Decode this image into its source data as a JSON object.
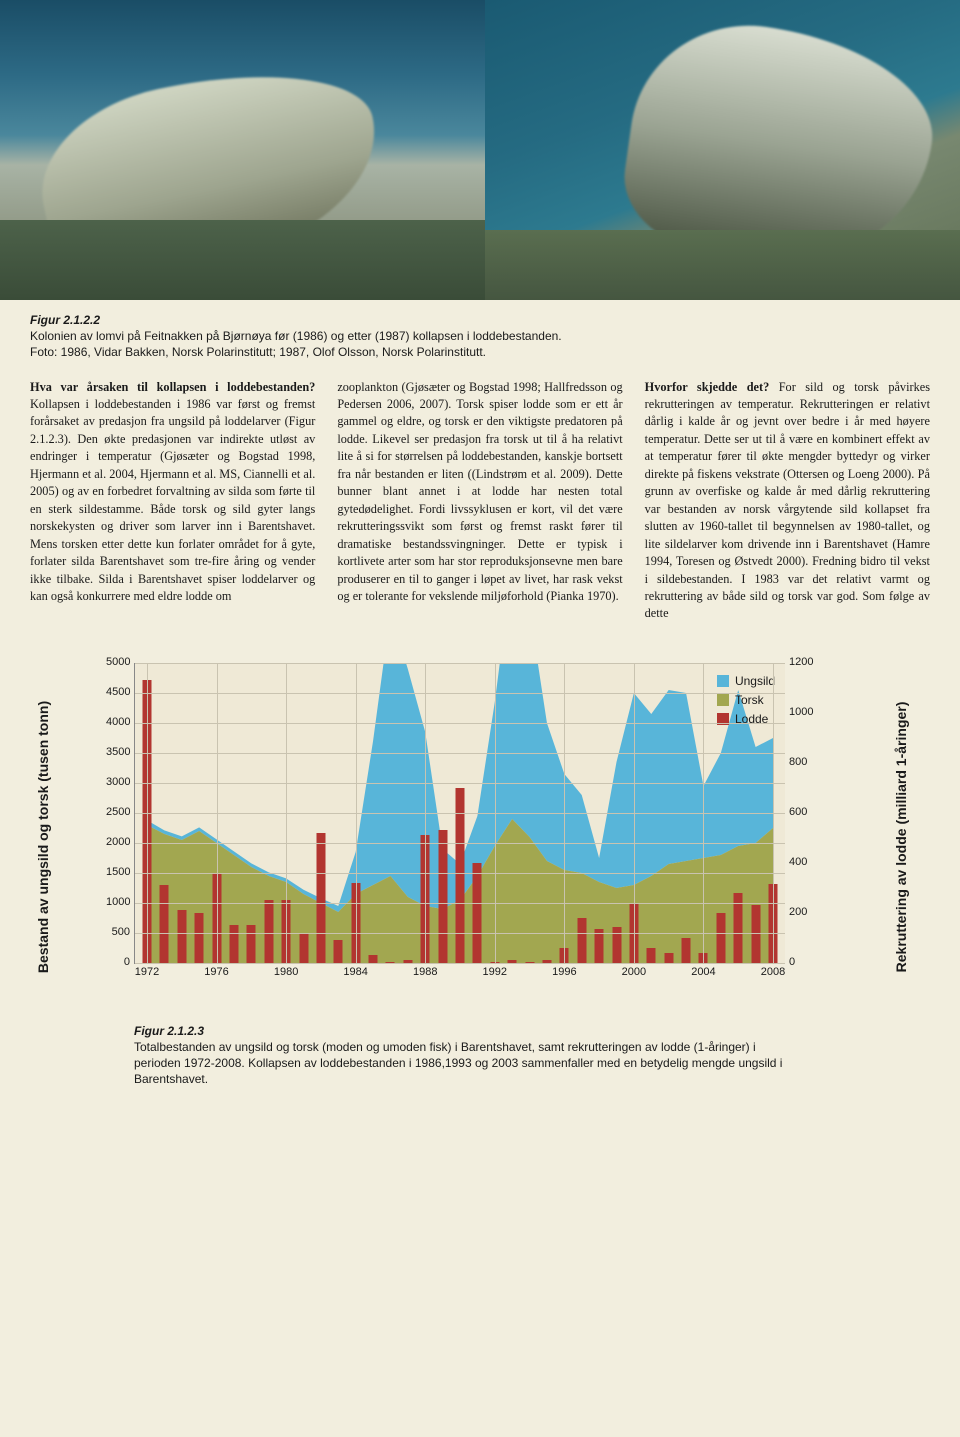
{
  "photos": {
    "left_alt": "Lomvi colony Feitnakken Bjørnøya 1986",
    "right_alt": "Lomvi colony Feitnakken Bjørnøya 1987"
  },
  "fig_caption": {
    "title": "Figur 2.1.2.2",
    "line1": "Kolonien av lomvi på Feitnakken på Bjørnøya før (1986) og etter (1987) kollapsen i loddebestanden.",
    "line2": "Foto: 1986, Vidar Bakken, Norsk Polarinstitutt; 1987, Olof Olsson, Norsk Polarinstitutt."
  },
  "columns": {
    "col1": {
      "heading": "Hva var årsaken til kollapsen i loddebestanden?",
      "body": "Kollapsen i loddebestanden i 1986 var først og fremst forårsaket av predasjon fra ungsild på loddelarver (Figur 2.1.2.3). Den økte predasjonen var indirekte utløst av endringer i temperatur (Gjøsæter og Bogstad 1998, Hjermann et al. 2004, Hjer­mann et al. MS, Ciannelli et al. 2005) og av en forbedret forvaltning av silda som førte til en sterk sildestamme. Både torsk og sild gyter langs norskekysten og dri­ver som larver inn i Barentshavet. Mens torsken etter dette kun forlater området for å gyte, forlater silda Barentshavet som tre-fire åring og vender ikke tilbake. Silda i Barentshavet spiser loddelarver og kan også konkurrere med eldre lodde om"
    },
    "col2": {
      "body": "zooplankton (Gjøsæter og Bogstad 1998; Hallfredsson og Pedersen 2006, 2007). Torsk spiser lodde som er ett år gammel og eldre, og torsk er den viktigste predatoren på lodde. Likevel ser predasjon fra torsk ut til å ha relativt lite å si for størrelsen på loddebestanden, kanskje bortsett fra når bestanden er liten ((Lindstrøm et al. 2009). Dette bunner blant annet i at lodde har nesten total gytedødelighet. Fordi livs­syklusen er kort, vil det være rekrutterings­svikt som først og fremst raskt fører til dramatiske bestandssvingninger. Dette er typisk i kortlivete arter som har stor repro­duksjonsevne men bare produserer en til to ganger i løpet av livet, har rask vekst og er tolerante for vekslende miljøforhold (Pianka 1970)."
    },
    "col3": {
      "heading": "Hvorfor skjedde det?",
      "body": "For sild og torsk påvirkes rekrutteringen av temperatur. Rekrutteringen er relativt dårlig i kalde år og jevnt over bedre i år med høyere temperatur. Dette ser ut til å være en kombinert effekt av at temperatur fører til økte mengder byttedyr og virker direkte på fiskens vekstrate (Ottersen og Loeng 2000). På grunn av overfiske og kalde år med dårlig rekruttering var bestanden av norsk vårgytende sild kol­lapset fra slutten av 1960-tallet til begyn­nelsen av 1980-tallet, og lite sildelarver kom drivende inn i Barentshavet (Hamre 1994, Toresen og Østvedt 2000). Fredning bidro til vekst i sildebestanden. I 1983 var det relativt varmt og rekruttering av både sild og torsk var god. Som følge av dette"
    }
  },
  "chart": {
    "type": "area_and_bar_dual_axis",
    "background_color": "#efe9d6",
    "grid_color": "#c9c3b0",
    "font_family": "Arial",
    "label_fontsize": 14,
    "tick_fontsize": 11,
    "y_left": {
      "label": "Bestand av ungsild og torsk (tusen tonn)",
      "min": 0,
      "max": 5000,
      "ticks": [
        0,
        500,
        1000,
        1500,
        2000,
        2500,
        3000,
        3500,
        4000,
        4500,
        5000
      ]
    },
    "y_right": {
      "label": "Rekruttering av lodde (milliard 1-åringer)",
      "min": 0,
      "max": 1200,
      "ticks": [
        0,
        200,
        400,
        600,
        800,
        1000,
        1200
      ]
    },
    "x": {
      "years_all": [
        1972,
        1973,
        1974,
        1975,
        1976,
        1977,
        1978,
        1979,
        1980,
        1981,
        1982,
        1983,
        1984,
        1985,
        1986,
        1987,
        1988,
        1989,
        1990,
        1991,
        1992,
        1993,
        1994,
        1995,
        1996,
        1997,
        1998,
        1999,
        2000,
        2001,
        2002,
        2003,
        2004,
        2005,
        2006,
        2007,
        2008
      ],
      "tick_labels": [
        1972,
        1976,
        1980,
        1984,
        1988,
        1992,
        1996,
        2000,
        2004,
        2008
      ]
    },
    "series": {
      "ungsild": {
        "label": "Ungsild",
        "color": "#58b5d9",
        "values": [
          80,
          60,
          60,
          60,
          60,
          60,
          60,
          60,
          60,
          70,
          80,
          100,
          700,
          2400,
          4400,
          3800,
          2900,
          1000,
          600,
          1000,
          2400,
          4200,
          3800,
          2300,
          1600,
          1300,
          400,
          2100,
          3200,
          2700,
          2900,
          2800,
          1200,
          1700,
          2600,
          1600,
          1500
        ]
      },
      "torsk": {
        "label": "Torsk",
        "color": "#a2a750",
        "values": [
          2300,
          2150,
          2050,
          2200,
          2000,
          1800,
          1600,
          1450,
          1350,
          1150,
          1000,
          850,
          1150,
          1300,
          1450,
          1100,
          950,
          900,
          1050,
          1450,
          1950,
          2400,
          2100,
          1700,
          1550,
          1500,
          1350,
          1250,
          1300,
          1450,
          1650,
          1700,
          1750,
          1800,
          1950,
          2000,
          2250
        ]
      },
      "lodde": {
        "label": "Lodde",
        "color": "#b23530",
        "axis": "right",
        "values": [
          1130,
          310,
          210,
          200,
          360,
          150,
          150,
          250,
          250,
          120,
          520,
          90,
          320,
          30,
          5,
          10,
          510,
          530,
          700,
          400,
          5,
          10,
          5,
          10,
          60,
          180,
          135,
          145,
          240,
          60,
          40,
          100,
          40,
          200,
          280,
          230,
          315
        ]
      }
    },
    "legend": {
      "position": "top-right",
      "items": [
        "Ungsild",
        "Torsk",
        "Lodde"
      ]
    }
  },
  "chart_caption": {
    "title": "Figur 2.1.2.3",
    "body": "Totalbestanden av ungsild og torsk (moden og umoden fisk) i Barentshavet, samt rekrutte­ringen av lodde (1-åringer) i perioden 1972-2008. Kollapsen av loddebestanden i 1986,1993 og 2003 sammenfaller med en betydelig mengde ungsild i Barentshavet."
  }
}
